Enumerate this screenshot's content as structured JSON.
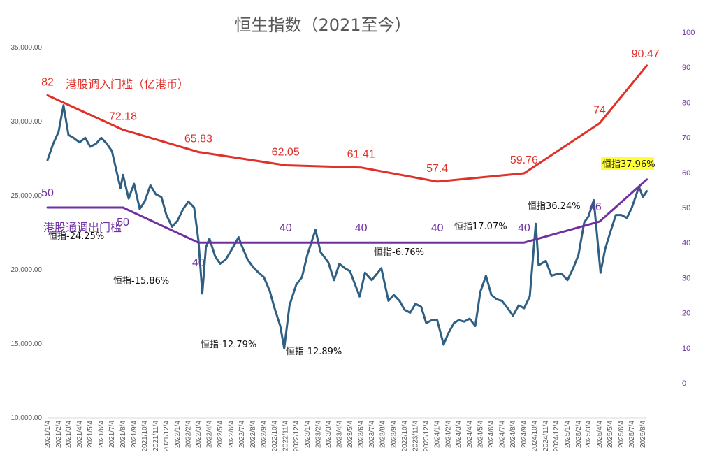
{
  "chart_data": {
    "type": "line",
    "title": "恒生指数（2021至今）",
    "y_left": {
      "range": [
        10000,
        35000
      ],
      "ticks": [
        "10,000.00",
        "15,000.00",
        "20,000.00",
        "25,000.00",
        "30,000.00",
        "35,000.00"
      ],
      "tick_values": [
        10000,
        15000,
        20000,
        25000,
        30000,
        35000
      ]
    },
    "y_right": {
      "range": [
        0,
        100
      ],
      "ticks": [
        "0",
        "10",
        "20",
        "30",
        "40",
        "50",
        "60",
        "70",
        "80",
        "90",
        "100"
      ],
      "tick_values": [
        0,
        10,
        20,
        30,
        40,
        50,
        60,
        70,
        80,
        90,
        100
      ]
    },
    "x_tick_labels": [
      "2021/1/4",
      "2021/2/4",
      "2021/3/4",
      "2021/4/4",
      "2021/5/4",
      "2021/6/4",
      "2021/7/4",
      "2021/8/4",
      "2021/9/4",
      "2021/10/4",
      "2021/11/4",
      "2021/12/4",
      "2022/1/4",
      "2022/2/4",
      "2022/3/4",
      "2022/4/4",
      "2022/5/4",
      "2022/6/4",
      "2022/7/4",
      "2022/8/4",
      "2022/9/4",
      "2022/10/4",
      "2022/11/4",
      "2022/12/4",
      "2023/1/4",
      "2023/2/4",
      "2023/3/4",
      "2023/4/4",
      "2023/5/4",
      "2023/6/4",
      "2023/7/4",
      "2023/8/4",
      "2023/9/4",
      "2023/10/4",
      "2023/11/4",
      "2023/12/4",
      "2024/1/4",
      "2024/2/4",
      "2024/3/4",
      "2024/4/4",
      "2024/5/4",
      "2024/6/4",
      "2024/7/4",
      "2024/8/4",
      "2024/9/4",
      "2024/10/4",
      "2024/11/4",
      "2024/12/4",
      "2025/1/4",
      "2025/2/4",
      "2025/3/4",
      "2025/4/4",
      "2025/5/4",
      "2025/6/4",
      "2025/7/4",
      "2025/8/4"
    ],
    "series": [
      {
        "name": "港股调入门槛（亿港币）",
        "axis": "right",
        "color": "#e0302a",
        "points": [
          {
            "x": "2021/1/4",
            "y": 82,
            "label": "82"
          },
          {
            "x": "2021/8/4",
            "y": 72.18,
            "label": "72.18"
          },
          {
            "x": "2022/3/4",
            "y": 65.83,
            "label": "65.83"
          },
          {
            "x": "2022/11/4",
            "y": 62.05,
            "label": "62.05"
          },
          {
            "x": "2023/6/4",
            "y": 61.41,
            "label": "61.41"
          },
          {
            "x": "2024/1/4",
            "y": 57.4,
            "label": "57.4"
          },
          {
            "x": "2024/9/4",
            "y": 59.76,
            "label": "59.76"
          },
          {
            "x": "2025/4/4",
            "y": 74,
            "label": "74"
          },
          {
            "x": "2025/8/15",
            "y": 90.47,
            "label": "90.47"
          }
        ]
      },
      {
        "name": "港股通调出门槛",
        "axis": "right",
        "color": "#7030a0",
        "points": [
          {
            "x": "2021/1/4",
            "y": 50,
            "label": "50"
          },
          {
            "x": "2021/8/4",
            "y": 50,
            "label": "50"
          },
          {
            "x": "2022/3/4",
            "y": 40,
            "label": "40"
          },
          {
            "x": "2022/11/4",
            "y": 40,
            "label": "40"
          },
          {
            "x": "2023/6/4",
            "y": 40,
            "label": "40"
          },
          {
            "x": "2024/1/4",
            "y": 40,
            "label": "40"
          },
          {
            "x": "2024/9/4",
            "y": 40,
            "label": "40"
          },
          {
            "x": "2025/4/4",
            "y": 46,
            "label": "46"
          },
          {
            "x": "2025/8/15",
            "y": 58,
            "label": "58"
          }
        ]
      },
      {
        "name": "恒生指数",
        "axis": "left",
        "color": "#2f5f82",
        "points": [
          {
            "x": "2021/1/4",
            "y": 27400
          },
          {
            "x": "2021/1/20",
            "y": 28500
          },
          {
            "x": "2021/2/4",
            "y": 29300
          },
          {
            "x": "2021/2/18",
            "y": 31100
          },
          {
            "x": "2021/3/4",
            "y": 29100
          },
          {
            "x": "2021/3/18",
            "y": 28900
          },
          {
            "x": "2021/4/4",
            "y": 28600
          },
          {
            "x": "2021/4/20",
            "y": 28900
          },
          {
            "x": "2021/5/4",
            "y": 28300
          },
          {
            "x": "2021/5/20",
            "y": 28500
          },
          {
            "x": "2021/6/4",
            "y": 28900
          },
          {
            "x": "2021/6/20",
            "y": 28500
          },
          {
            "x": "2021/7/4",
            "y": 28000
          },
          {
            "x": "2021/7/28",
            "y": 25500
          },
          {
            "x": "2021/8/4",
            "y": 26400
          },
          {
            "x": "2021/8/20",
            "y": 24800
          },
          {
            "x": "2021/9/4",
            "y": 25800
          },
          {
            "x": "2021/9/20",
            "y": 24100
          },
          {
            "x": "2021/10/4",
            "y": 24600
          },
          {
            "x": "2021/10/20",
            "y": 25700
          },
          {
            "x": "2021/11/4",
            "y": 25100
          },
          {
            "x": "2021/11/20",
            "y": 24900
          },
          {
            "x": "2021/12/4",
            "y": 23700
          },
          {
            "x": "2021/12/20",
            "y": 22900
          },
          {
            "x": "2022/1/4",
            "y": 23300
          },
          {
            "x": "2022/1/20",
            "y": 24100
          },
          {
            "x": "2022/2/4",
            "y": 24600
          },
          {
            "x": "2022/2/20",
            "y": 24200
          },
          {
            "x": "2022/3/4",
            "y": 22000
          },
          {
            "x": "2022/3/15",
            "y": 18400
          },
          {
            "x": "2022/3/25",
            "y": 21500
          },
          {
            "x": "2022/4/4",
            "y": 22100
          },
          {
            "x": "2022/4/20",
            "y": 20900
          },
          {
            "x": "2022/5/4",
            "y": 20400
          },
          {
            "x": "2022/5/20",
            "y": 20700
          },
          {
            "x": "2022/6/4",
            "y": 21300
          },
          {
            "x": "2022/6/25",
            "y": 22200
          },
          {
            "x": "2022/7/4",
            "y": 21600
          },
          {
            "x": "2022/7/20",
            "y": 20700
          },
          {
            "x": "2022/8/4",
            "y": 20200
          },
          {
            "x": "2022/8/20",
            "y": 19800
          },
          {
            "x": "2022/9/4",
            "y": 19500
          },
          {
            "x": "2022/9/20",
            "y": 18600
          },
          {
            "x": "2022/10/4",
            "y": 17400
          },
          {
            "x": "2022/10/20",
            "y": 16200
          },
          {
            "x": "2022/10/31",
            "y": 14700
          },
          {
            "x": "2022/11/15",
            "y": 17600
          },
          {
            "x": "2022/12/4",
            "y": 19000
          },
          {
            "x": "2022/12/20",
            "y": 19500
          },
          {
            "x": "2023/1/4",
            "y": 21000
          },
          {
            "x": "2023/1/27",
            "y": 22700
          },
          {
            "x": "2023/2/10",
            "y": 21200
          },
          {
            "x": "2023/3/4",
            "y": 20500
          },
          {
            "x": "2023/3/20",
            "y": 19300
          },
          {
            "x": "2023/4/4",
            "y": 20400
          },
          {
            "x": "2023/4/20",
            "y": 20100
          },
          {
            "x": "2023/5/4",
            "y": 19900
          },
          {
            "x": "2023/5/31",
            "y": 18200
          },
          {
            "x": "2023/6/15",
            "y": 19800
          },
          {
            "x": "2023/7/4",
            "y": 19300
          },
          {
            "x": "2023/7/31",
            "y": 20100
          },
          {
            "x": "2023/8/20",
            "y": 17900
          },
          {
            "x": "2023/9/4",
            "y": 18300
          },
          {
            "x": "2023/9/20",
            "y": 17900
          },
          {
            "x": "2023/10/4",
            "y": 17300
          },
          {
            "x": "2023/10/20",
            "y": 17100
          },
          {
            "x": "2023/11/4",
            "y": 17700
          },
          {
            "x": "2023/11/20",
            "y": 17500
          },
          {
            "x": "2023/12/4",
            "y": 16400
          },
          {
            "x": "2023/12/20",
            "y": 16600
          },
          {
            "x": "2024/1/4",
            "y": 16600
          },
          {
            "x": "2024/1/22",
            "y": 14950
          },
          {
            "x": "2024/2/4",
            "y": 15700
          },
          {
            "x": "2024/2/20",
            "y": 16400
          },
          {
            "x": "2024/3/4",
            "y": 16600
          },
          {
            "x": "2024/3/20",
            "y": 16500
          },
          {
            "x": "2024/4/4",
            "y": 16700
          },
          {
            "x": "2024/4/20",
            "y": 16200
          },
          {
            "x": "2024/5/4",
            "y": 18500
          },
          {
            "x": "2024/5/20",
            "y": 19600
          },
          {
            "x": "2024/6/4",
            "y": 18300
          },
          {
            "x": "2024/6/20",
            "y": 18000
          },
          {
            "x": "2024/7/4",
            "y": 17900
          },
          {
            "x": "2024/7/20",
            "y": 17400
          },
          {
            "x": "2024/8/4",
            "y": 16900
          },
          {
            "x": "2024/8/20",
            "y": 17600
          },
          {
            "x": "2024/9/4",
            "y": 17400
          },
          {
            "x": "2024/9/20",
            "y": 18200
          },
          {
            "x": "2024/10/7",
            "y": 23100
          },
          {
            "x": "2024/10/15",
            "y": 20300
          },
          {
            "x": "2024/11/4",
            "y": 20600
          },
          {
            "x": "2024/11/20",
            "y": 19600
          },
          {
            "x": "2024/12/4",
            "y": 19700
          },
          {
            "x": "2024/12/20",
            "y": 19700
          },
          {
            "x": "2025/1/4",
            "y": 19300
          },
          {
            "x": "2025/1/20",
            "y": 20100
          },
          {
            "x": "2025/2/4",
            "y": 21000
          },
          {
            "x": "2025/2/20",
            "y": 23200
          },
          {
            "x": "2025/3/4",
            "y": 23600
          },
          {
            "x": "2025/3/19",
            "y": 24700
          },
          {
            "x": "2025/4/7",
            "y": 19800
          },
          {
            "x": "2025/4/20",
            "y": 21400
          },
          {
            "x": "2025/5/4",
            "y": 22500
          },
          {
            "x": "2025/5/20",
            "y": 23700
          },
          {
            "x": "2025/6/4",
            "y": 23700
          },
          {
            "x": "2025/6/20",
            "y": 23500
          },
          {
            "x": "2025/7/4",
            "y": 24200
          },
          {
            "x": "2025/7/24",
            "y": 25600
          },
          {
            "x": "2025/8/4",
            "y": 24900
          },
          {
            "x": "2025/8/15",
            "y": 25300
          }
        ]
      }
    ],
    "legend": {
      "red": "港股调入门槛（亿港币）",
      "purple": "港股通调出门槛"
    },
    "annotations": [
      {
        "text": "恒指-24.25%",
        "x": "2021/1/4",
        "highlight": false
      },
      {
        "text": "恒指-15.86%",
        "x": "2021/8/4",
        "highlight": false
      },
      {
        "text": "恒指-12.79%",
        "x": "2022/3/4",
        "highlight": false
      },
      {
        "text": "恒指-12.89%",
        "x": "2022/11/4",
        "highlight": false
      },
      {
        "text": "恒指-6.76%",
        "x": "2023/6/4",
        "highlight": false
      },
      {
        "text": "恒指17.07%",
        "x": "2024/1/4",
        "highlight": false
      },
      {
        "text": "恒指36.24%",
        "x": "2024/9/4",
        "highlight": false
      },
      {
        "text": "恒指37.96%",
        "x": "2025/4/4",
        "highlight": true
      }
    ],
    "grid": false
  }
}
